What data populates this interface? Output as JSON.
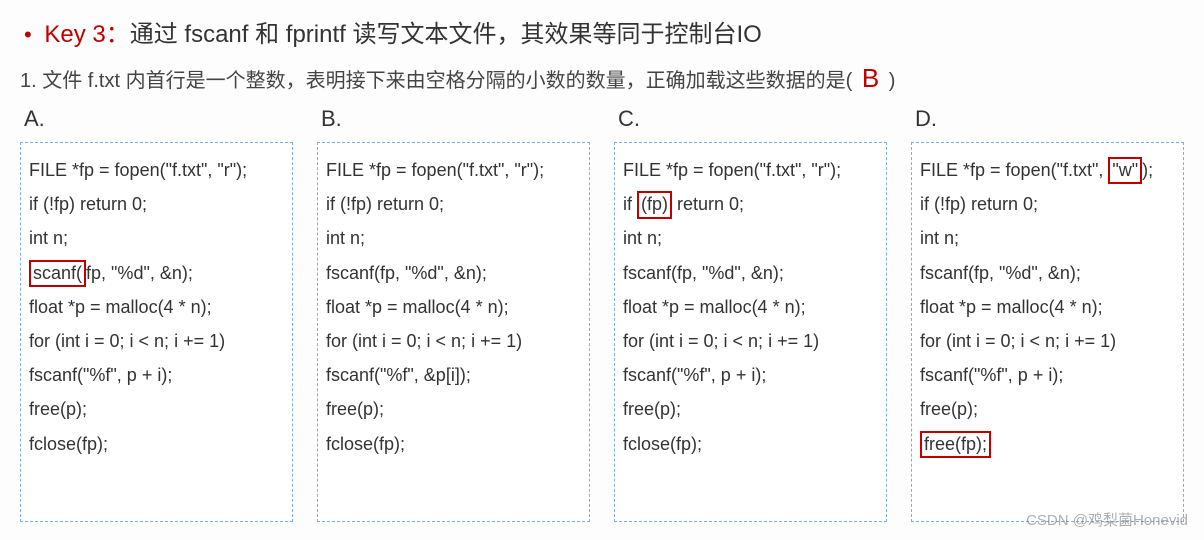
{
  "key": {
    "bullet": "•",
    "label": "Key 3",
    "colon": "：",
    "text": "通过 fscanf 和 fprintf 读写文本文件，其效果等同于控制台IO"
  },
  "question": {
    "num": "1.",
    "text": "文件 f.txt 内首行是一个整数，表明接下来由空格分隔的小数的数量，正确加载这些数据的是(",
    "answer": "B",
    "close": ")"
  },
  "options": {
    "A": {
      "label": "A.",
      "lines": {
        "l1": "FILE *fp = fopen(\"f.txt\", \"r\");",
        "l2": "if (!fp) return 0;",
        "l3": "int n;",
        "l4_pre": "",
        "l4_err": "scanf(",
        "l4_post": "fp, \"%d\", &n);",
        "l5": "float *p = malloc(4 * n);",
        "l6": "for (int i = 0; i < n; i += 1)",
        "l7": "      fscanf(\"%f\", p + i);",
        "l8": "free(p);",
        "l9": "fclose(fp);"
      }
    },
    "B": {
      "label": "B.",
      "lines": {
        "l1": "FILE *fp = fopen(\"f.txt\", \"r\");",
        "l2": "if (!fp) return 0;",
        "l3": "int n;",
        "l4": "fscanf(fp, \"%d\", &n);",
        "l5": "float *p = malloc(4 * n);",
        "l6": "for (int i = 0; i < n; i += 1)",
        "l7": "      fscanf(\"%f\", &p[i]);",
        "l8": "free(p);",
        "l9": "fclose(fp);"
      }
    },
    "C": {
      "label": "C.",
      "lines": {
        "l1": "FILE *fp = fopen(\"f.txt\", \"r\");",
        "l2_pre": "if ",
        "l2_err": "(fp)",
        "l2_post": " return 0;",
        "l3": "int n;",
        "l4": "fscanf(fp, \"%d\", &n);",
        "l5": "float *p = malloc(4 * n);",
        "l6": "for (int i = 0; i < n; i += 1)",
        "l7": "      fscanf(\"%f\", p + i);",
        "l8": "free(p);",
        "l9": "fclose(fp);"
      }
    },
    "D": {
      "label": "D.",
      "lines": {
        "l1_pre": "FILE *fp = fopen(\"f.txt\", ",
        "l1_err": "\"w\"",
        "l1_post": ");",
        "l2": "if (!fp) return 0;",
        "l3": "int n;",
        "l4": "fscanf(fp, \"%d\", &n);",
        "l5": "float *p = malloc(4 * n);",
        "l6": "for (int i = 0; i < n; i += 1)",
        "l7": "      fscanf(\"%f\", p + i);",
        "l8": "free(p);",
        "l9_err": "free(fp);"
      }
    }
  },
  "watermark": "CSDN @鸡梨菌Honevid",
  "style": {
    "key_color": "#c00000",
    "answer_color": "#c00000",
    "box_border": "#7faee0",
    "err_border": "#c00000",
    "bg": "#fdfdfd",
    "text": "#333333",
    "font_body": "Arial",
    "font_cjk": "Microsoft YaHei",
    "code_fontsize": 18,
    "title_fontsize": 24,
    "q_fontsize": 20
  }
}
